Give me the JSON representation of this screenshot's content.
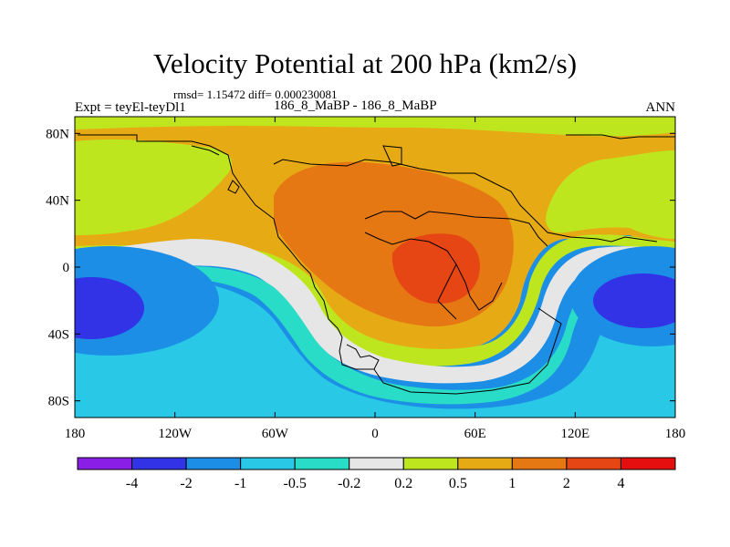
{
  "chart_data": {
    "type": "heatmap",
    "title": "Velocity Potential at 200 hPa (km2/s)",
    "stats_text": "rmsd= 1.15472 diff= 0.000230081",
    "left_label": "Expt = teyEl-teyDl1",
    "center_label": "186_8_MaBP - 186_8_MaBP",
    "right_label": "ANN",
    "x_ticks": [
      "180",
      "120W",
      "60W",
      "0",
      "60E",
      "120E",
      "180"
    ],
    "y_ticks": [
      "80N",
      "40N",
      "0",
      "40S",
      "80S"
    ],
    "xlim": [
      -180,
      180
    ],
    "ylim": [
      -90,
      90
    ],
    "colorbar_labels": [
      "-4",
      "-2",
      "-1",
      "-0.5",
      "-0.2",
      "0.2",
      "0.5",
      "1",
      "2",
      "4"
    ],
    "colorbar_colors": [
      "#8a1ee6",
      "#3232e6",
      "#1c8ee6",
      "#28c8e6",
      "#28dcc8",
      "#e6e6e6",
      "#bee61e",
      "#e6aa14",
      "#e67814",
      "#e64614",
      "#e60f0f"
    ],
    "regions": [
      {
        "level": "0.2 to 0.5",
        "feature": "mid-latitude and polar bands"
      },
      {
        "level": "0.5 to 1",
        "feature": "northern hemisphere background"
      },
      {
        "level": "1 to 2",
        "feature": "Atlantic / Africa / Eurasia center"
      },
      {
        "level": "2 to 4",
        "feature": "center near 30E, 10N"
      },
      {
        "level": "-0.2 to 0.2",
        "feature": "zero contour band"
      },
      {
        "level": "-2 to -4",
        "feature": "minima near 160W 20S and 160E 20S"
      }
    ]
  }
}
